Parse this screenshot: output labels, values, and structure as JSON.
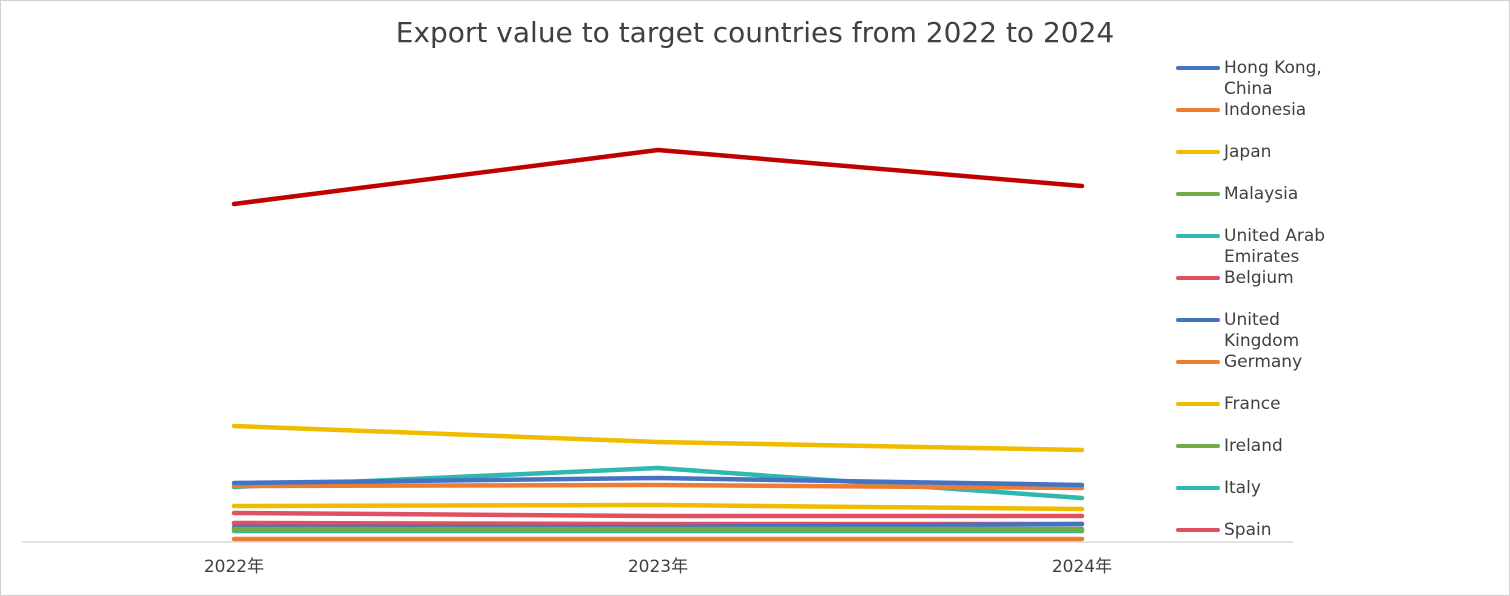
{
  "chart_data": {
    "type": "line",
    "title": "Export value to target countries from 2022 to 2024",
    "categories": [
      "2022年",
      "2023年",
      "2024年"
    ],
    "xlabel": "",
    "ylabel": "",
    "y_axis_visible": false,
    "grid": false,
    "legend_position": "right",
    "ylim": [
      0,
      400
    ],
    "series": [
      {
        "name": "Hong Kong, China",
        "color": "#4472C4",
        "values": [
          58,
          63,
          56
        ]
      },
      {
        "name": "Indonesia",
        "color": "#ED7D31",
        "values": [
          55,
          56,
          53
        ]
      },
      {
        "name": "Japan",
        "color": "#F0BC00",
        "values": [
          115,
          99,
          91
        ]
      },
      {
        "name": "Malaysia",
        "color": "#70AD47",
        "values": [
          12,
          12,
          12
        ]
      },
      {
        "name": "United Arab Emirates",
        "color": "#2EB8AE",
        "values": [
          54,
          73,
          43
        ]
      },
      {
        "name": "Belgium",
        "color": "#E05060",
        "values": [
          28,
          25,
          25
        ]
      },
      {
        "name": "United Kingdom",
        "color": "#4472C4",
        "values": [
          14,
          14,
          17
        ]
      },
      {
        "name": "Germany",
        "color": "#ED7D31",
        "values": [
          2,
          2,
          2
        ]
      },
      {
        "name": "France",
        "color": "#F0BC00",
        "values": [
          35,
          36,
          32
        ]
      },
      {
        "name": "Ireland",
        "color": "#70AD47",
        "values": [
          11,
          11,
          11
        ]
      },
      {
        "name": "Italy",
        "color": "#2EB8AE",
        "values": [
          10,
          10,
          10
        ]
      },
      {
        "name": "Spain",
        "color": "#E05060",
        "values": [
          18,
          17,
          17
        ]
      },
      {
        "name": null,
        "color": "#C00000",
        "values": [
          337,
          391,
          355
        ]
      }
    ]
  }
}
